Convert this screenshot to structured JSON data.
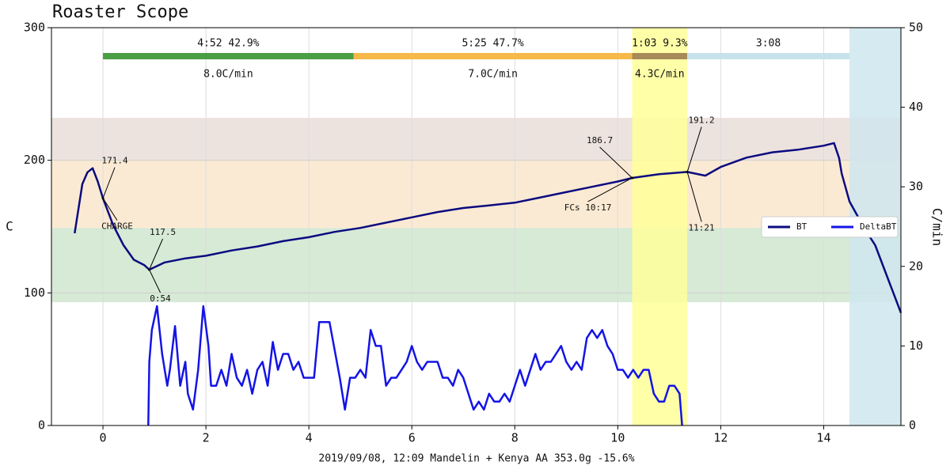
{
  "chart_data": {
    "type": "line",
    "title": "Roaster Scope",
    "ylabel": "C",
    "y2label": "C/min",
    "footer": "2019/09/08, 12:09   Mandelin + Kenya AA   353.0g   -15.6%",
    "xlim": [
      -1,
      15.5
    ],
    "xticks": [
      0,
      2,
      4,
      6,
      8,
      10,
      12,
      14
    ],
    "ylim": [
      0,
      300
    ],
    "yticks": [
      0,
      100,
      200,
      300
    ],
    "y2lim": [
      0,
      50
    ],
    "y2ticks": [
      0,
      10,
      20,
      30,
      40,
      50
    ],
    "grid": true,
    "legend": "right",
    "bands": [
      {
        "from": 93,
        "to": 149,
        "color": "#d6ead6"
      },
      {
        "from": 149,
        "to": 200,
        "color": "#fbead3"
      },
      {
        "from": 200,
        "to": 232,
        "color": "#ede3de"
      }
    ],
    "vbands": [
      {
        "from": 10.28,
        "to": 11.35,
        "color": "#ffff99"
      },
      {
        "from": 14.5,
        "to": 15.5,
        "color": "#cfe6ee"
      }
    ],
    "phases": [
      {
        "label": "4:52  42.9%",
        "rate": "8.0C/min",
        "start": 0,
        "end": 4.87,
        "color": "#4a9e44"
      },
      {
        "label": "5:25  47.7%",
        "rate": "7.0C/min",
        "start": 4.87,
        "end": 10.28,
        "color": "#f6b94a"
      },
      {
        "label": "1:03  9.3%",
        "rate": "4.3C/min",
        "start": 10.28,
        "end": 11.35,
        "color": "#a78a5a"
      },
      {
        "label": "3:08",
        "start": 11.35,
        "end": 14.5,
        "color": "#c7e2ea"
      }
    ],
    "annotations": [
      {
        "label": "CHARGE",
        "x": 0,
        "y": 171.4
      },
      {
        "label": "0:54",
        "x": 0.9,
        "y": 117.5
      },
      {
        "label": "FCs 10:17",
        "x": 10.28,
        "y": 186.7
      },
      {
        "label": "11:21",
        "x": 11.35,
        "y": 191.2
      }
    ],
    "series": [
      {
        "name": "BT",
        "color": "#0b0b80",
        "x": [
          -0.55,
          -0.4,
          -0.3,
          -0.2,
          -0.1,
          0,
          0.2,
          0.4,
          0.6,
          0.8,
          0.9,
          1.2,
          1.6,
          2.0,
          2.5,
          3.0,
          3.5,
          4.0,
          4.5,
          5.0,
          5.5,
          6.0,
          6.5,
          7.0,
          7.5,
          8.0,
          8.5,
          9.0,
          9.5,
          10.0,
          10.28,
          10.8,
          11.35,
          11.7,
          12.0,
          12.5,
          13.0,
          13.5,
          14.0,
          14.2,
          14.3,
          14.35,
          14.5,
          14.8,
          15.0,
          15.5
        ],
        "values": [
          145,
          182,
          191,
          194,
          184,
          171.4,
          151,
          136,
          125,
          121,
          117.5,
          123,
          126,
          128,
          132,
          135,
          139,
          142,
          146,
          149,
          153,
          157,
          161,
          164,
          166,
          168,
          172,
          176,
          180,
          184,
          186.7,
          189.5,
          191.2,
          188.4,
          195,
          202,
          206,
          208,
          211,
          213,
          201.5,
          190,
          169,
          148,
          136,
          85
        ]
      },
      {
        "name": "DeltaBT",
        "color": "#1414e6",
        "axis": "y2",
        "x": [
          0.88,
          0.9,
          0.95,
          1.05,
          1.15,
          1.25,
          1.3,
          1.4,
          1.5,
          1.6,
          1.65,
          1.75,
          1.85,
          1.95,
          2.05,
          2.1,
          2.2,
          2.3,
          2.4,
          2.5,
          2.6,
          2.7,
          2.8,
          2.9,
          3.0,
          3.1,
          3.2,
          3.3,
          3.4,
          3.5,
          3.6,
          3.7,
          3.8,
          3.9,
          4.0,
          4.1,
          4.2,
          4.3,
          4.4,
          4.6,
          4.7,
          4.8,
          4.9,
          5.0,
          5.1,
          5.2,
          5.3,
          5.4,
          5.5,
          5.6,
          5.7,
          5.8,
          5.9,
          6.0,
          6.1,
          6.2,
          6.3,
          6.4,
          6.5,
          6.6,
          6.7,
          6.8,
          6.9,
          7.0,
          7.1,
          7.2,
          7.3,
          7.4,
          7.5,
          7.6,
          7.7,
          7.8,
          7.9,
          8.0,
          8.1,
          8.2,
          8.3,
          8.4,
          8.5,
          8.6,
          8.7,
          8.8,
          8.9,
          9.0,
          9.1,
          9.2,
          9.3,
          9.4,
          9.5,
          9.6,
          9.7,
          9.8,
          9.9,
          10.0,
          10.1,
          10.2,
          10.3,
          10.4,
          10.5,
          10.6,
          10.7,
          10.8,
          10.9,
          11.0,
          11.1,
          11.2,
          11.25
        ],
        "values": [
          0,
          8,
          12,
          15,
          9,
          5,
          7,
          12.5,
          5,
          8,
          4,
          2,
          7,
          15,
          10,
          5,
          5,
          7,
          5,
          9,
          6,
          5,
          7,
          4,
          7,
          8,
          5,
          10.5,
          7,
          9,
          9,
          7,
          8,
          6,
          6,
          6,
          13,
          13,
          13,
          6,
          2,
          6,
          6,
          7,
          6,
          12,
          10,
          10,
          5,
          6,
          6,
          7,
          8,
          10,
          8,
          7,
          8,
          8,
          8,
          6,
          6,
          5,
          7,
          6,
          4,
          2,
          3,
          2,
          4,
          3,
          3,
          4,
          3,
          5,
          7,
          5,
          7,
          9,
          7,
          8,
          8,
          9,
          10,
          8,
          7,
          8,
          7,
          11,
          12,
          11,
          12,
          10,
          9,
          7,
          7,
          6,
          7,
          6,
          7,
          7,
          4,
          3,
          3,
          5,
          5,
          4,
          0
        ]
      }
    ]
  }
}
